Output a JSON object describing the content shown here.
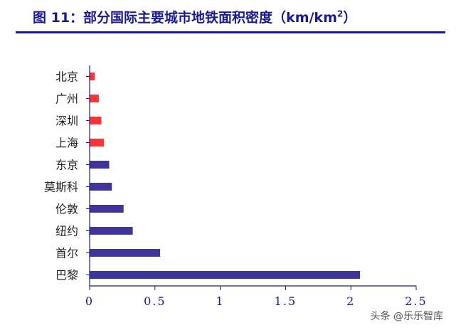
{
  "figure": {
    "title_main": "图 11：部分国际主要城市地铁面积密度（km/km",
    "title_sup": "2",
    "title_end": "）"
  },
  "watermark": "头条 @乐乐智库",
  "colors": {
    "highlight": "#ff3333",
    "default": "#3d3599",
    "axis": "#1a1a8c"
  },
  "chart_data": {
    "type": "bar",
    "orientation": "horizontal",
    "categories": [
      "北京",
      "广州",
      "深圳",
      "上海",
      "东京",
      "莫斯科",
      "伦敦",
      "纽约",
      "首尔",
      "巴黎"
    ],
    "values": [
      0.04,
      0.07,
      0.09,
      0.11,
      0.15,
      0.17,
      0.26,
      0.33,
      0.54,
      2.07
    ],
    "highlight_categories": [
      "北京",
      "广州",
      "深圳",
      "上海"
    ],
    "xlim": [
      0,
      2.5
    ],
    "xticks": [
      0,
      0.5,
      1,
      1.5,
      2,
      2.5
    ],
    "xtick_labels": [
      "0",
      "0.5",
      "1",
      "1.5",
      "2",
      "2.5"
    ],
    "grid": false,
    "legend": "none"
  }
}
